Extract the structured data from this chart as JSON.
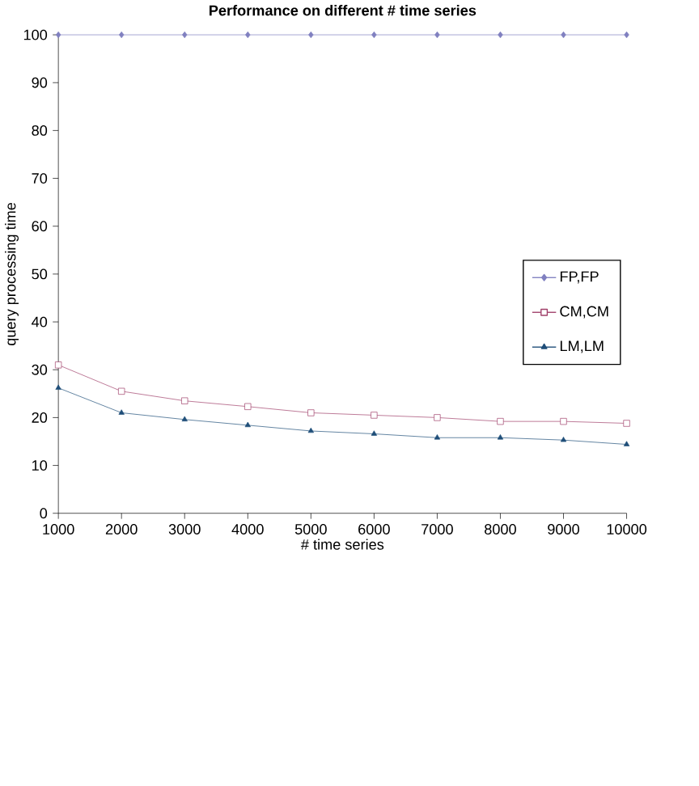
{
  "chart_data": {
    "type": "line",
    "title": "Performance on different # time series",
    "xlabel": "# time series",
    "ylabel": "query processing time",
    "x": [
      1000,
      2000,
      3000,
      4000,
      5000,
      6000,
      7000,
      8000,
      9000,
      10000
    ],
    "xlim": [
      1000,
      10000
    ],
    "xticks": [
      1000,
      2000,
      3000,
      4000,
      5000,
      6000,
      7000,
      8000,
      9000,
      10000
    ],
    "ylim": [
      0,
      100
    ],
    "yticks": [
      0,
      10,
      20,
      30,
      40,
      50,
      60,
      70,
      80,
      90,
      100
    ],
    "legend": "right",
    "line_style": "solid",
    "series": [
      {
        "name": "FP,FP",
        "color": "#8080c0",
        "marker": "diamond",
        "values": [
          100,
          100,
          100,
          100,
          100,
          100,
          100,
          100,
          100,
          100
        ]
      },
      {
        "name": "CM,CM",
        "color": "#a0406a",
        "marker": "square",
        "values": [
          31,
          25.5,
          23.5,
          22.3,
          21,
          20.5,
          20,
          19.2,
          19.2,
          18.8
        ]
      },
      {
        "name": "LM,LM",
        "color": "#1f4e79",
        "marker": "triangle",
        "values": [
          26.2,
          21,
          19.6,
          18.4,
          17.2,
          16.6,
          15.8,
          15.8,
          15.3,
          14.4
        ]
      }
    ]
  }
}
